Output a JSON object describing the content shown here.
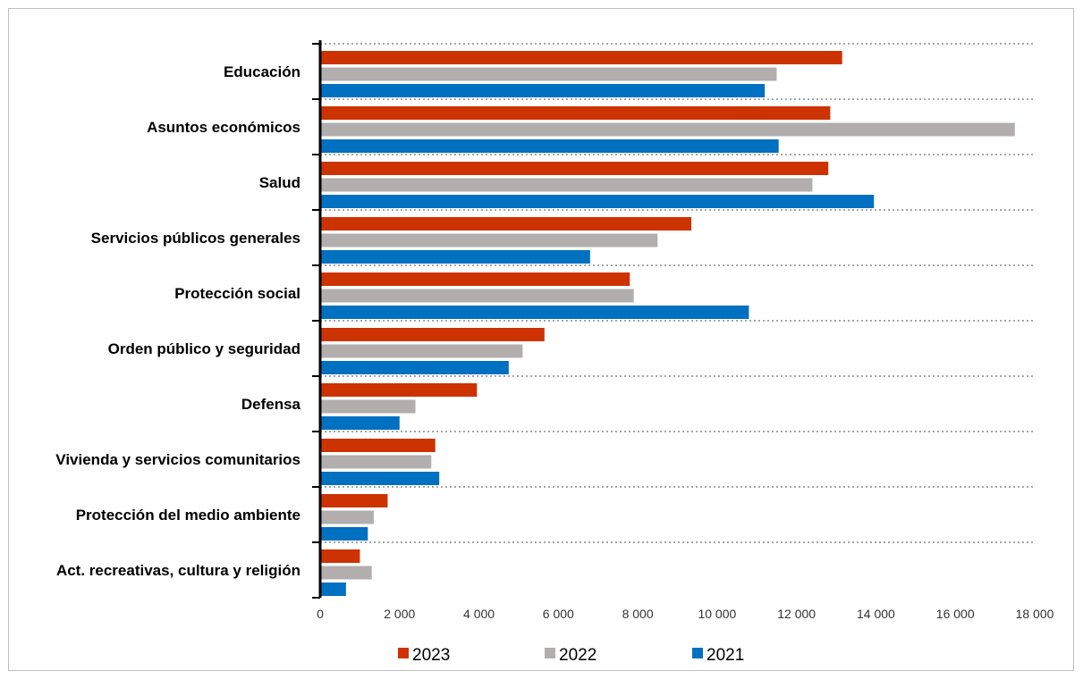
{
  "chart_data": {
    "type": "bar",
    "orientation": "horizontal",
    "title": "",
    "xlabel": "",
    "ylabel": "",
    "categories": [
      "Educación",
      "Asuntos económicos",
      "Salud",
      "Servicios públicos generales",
      "Protección social",
      "Orden público y seguridad",
      "Defensa",
      "Vivienda y servicios comunitarios",
      "Protección del medio ambiente",
      "Act. recreativas, cultura y religión"
    ],
    "series": [
      {
        "name": "2023",
        "color": "#cc3300",
        "values": [
          13150,
          12850,
          12800,
          9350,
          7800,
          5650,
          3950,
          2900,
          1700,
          1000
        ]
      },
      {
        "name": "2022",
        "color": "#b2aeae",
        "values": [
          11500,
          17500,
          12400,
          8500,
          7900,
          5100,
          2400,
          2800,
          1350,
          1300
        ]
      },
      {
        "name": "2021",
        "color": "#0070c0",
        "values": [
          11200,
          11550,
          13950,
          6800,
          10800,
          4750,
          2000,
          3000,
          1200,
          650
        ]
      }
    ],
    "xlim": [
      0,
      18000
    ],
    "xticks": [
      0,
      2000,
      4000,
      6000,
      8000,
      10000,
      12000,
      14000,
      16000,
      18000
    ],
    "xtick_labels": [
      "0",
      "2 000",
      "4 000",
      "6 000",
      "8 000",
      "10 000",
      "12 000",
      "14 000",
      "16 000",
      "18 000"
    ],
    "grid": "horizontal dotted",
    "legend": "bottom"
  }
}
